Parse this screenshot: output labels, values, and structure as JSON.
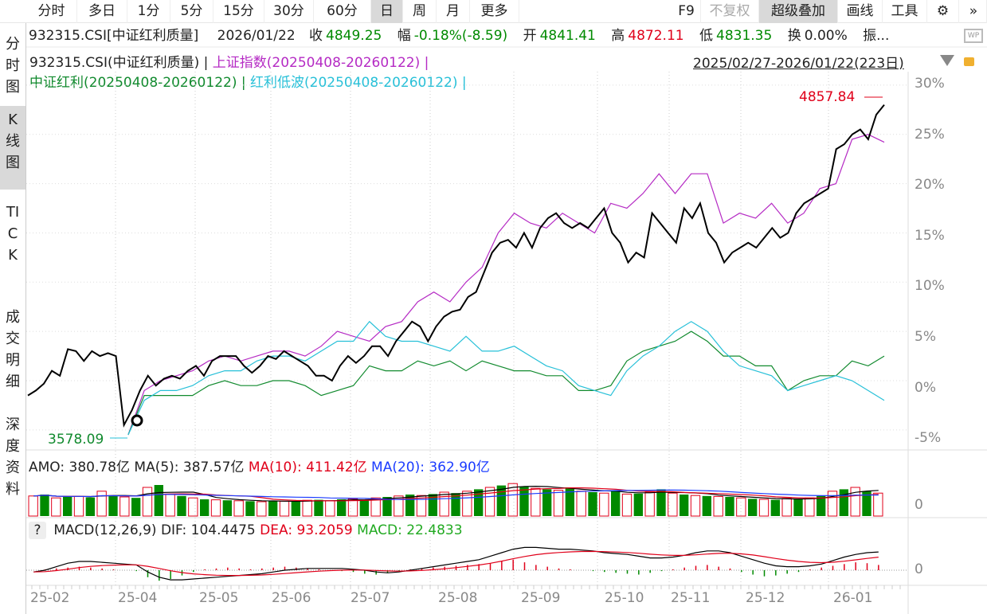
{
  "toolbar": {
    "tabs": [
      "分时",
      "多日",
      "1分",
      "5分",
      "15分",
      "30分",
      "60分",
      "日",
      "周",
      "月",
      "更多"
    ],
    "selected": "日",
    "right": [
      "F9",
      "不复权",
      "超级叠加",
      "画线",
      "工具"
    ],
    "settings_icon": "gear-icon",
    "more_icon": "double-chevron-right-icon"
  },
  "sidebar": {
    "items": [
      "分时图",
      "K线图",
      "TICK",
      "成交明细",
      "深度资料"
    ],
    "selected": "K线图"
  },
  "info": {
    "code": "932315.CSI[中证红利质量]",
    "date": "2026/01/22",
    "close_label": "收",
    "close": "4849.25",
    "change_label": "幅",
    "change": "-0.18%(-8.59)",
    "open_label": "开",
    "open": "4841.41",
    "high_label": "高",
    "high": "4872.11",
    "low_label": "低",
    "low": "4831.35",
    "turnover_label": "换",
    "turnover": "0.00%",
    "amp_label": "振..."
  },
  "legend": {
    "main": "932315.CSI(中证红利质量) |",
    "s1": "上证指数(20250408-20260122) |",
    "s2": "中证红利(20250408-20260122) |",
    "s3": "红利低波(20250408-20260122) |"
  },
  "range": "2025/02/27-2026/01/22(223日)",
  "colors": {
    "main": "#000000",
    "s1": "#b52bc4",
    "s2": "#118a2e",
    "s3": "#27c0d8",
    "up": "#e0001a",
    "down": "#008a00",
    "ma20": "#1b3cff"
  },
  "annotations": {
    "high": "4857.84",
    "low": "3578.09"
  },
  "y_axis": [
    "30%",
    "25%",
    "20%",
    "15%",
    "10%",
    "5%",
    "0%",
    "-5%"
  ],
  "x_axis": [
    "25-02",
    "25-04",
    "25-05",
    "25-06",
    "25-07",
    "25-08",
    "25-09",
    "25-10",
    "25-11",
    "25-12",
    "26-01"
  ],
  "volume": {
    "amo": "AMO: 380.78亿",
    "ma5": "MA(5): 387.57亿",
    "ma10": "MA(10): 411.42亿",
    "ma20": "MA(20): 362.90亿",
    "axis": "0"
  },
  "macd": {
    "help": "?",
    "title": "MACD(12,26,9)",
    "dif": "DIF: 104.4475",
    "dea": "DEA: 93.2059",
    "macd": "MACD: 22.4833",
    "axis": "0"
  },
  "chart_data": {
    "type": "line",
    "ylabel": "percent change",
    "ylim": [
      -7,
      31
    ],
    "days": 223,
    "series": [
      {
        "name": "932315.CSI(中证红利质量)",
        "start_day": 0,
        "end_day": 222,
        "values": [
          -1.5,
          -1,
          -0.3,
          1,
          0.5,
          3.2,
          3,
          2,
          3,
          2.5,
          2.8,
          2.5,
          -4.5,
          -3,
          -1,
          0.5,
          -0.5,
          0.2,
          0.5,
          0.2,
          1,
          1.5,
          0.5,
          2,
          2.5,
          2.5,
          2.5,
          1.5,
          0.8,
          1.5,
          2.5,
          2.2,
          3,
          2.5,
          2,
          1.5,
          0.5,
          0.5,
          0,
          1.5,
          2.5,
          1.8,
          2.5,
          3.5,
          3.5,
          2.5,
          4,
          5,
          6,
          5.5,
          4,
          5.5,
          6.5,
          7,
          7.2,
          8.5,
          9,
          11,
          13,
          14,
          14.3,
          13.5,
          15,
          13.5,
          15.5,
          16.5,
          17,
          16,
          15.5,
          16,
          15.5,
          16.5,
          17.5,
          15,
          14,
          12,
          13,
          12.5,
          17,
          16,
          15,
          14,
          17.5,
          16.5,
          18,
          15,
          14,
          12,
          13,
          13.5,
          14,
          13.5,
          14.5,
          15.5,
          14.5,
          15,
          17,
          18,
          18.5,
          19,
          19.5,
          23.5,
          24,
          25,
          25.5,
          24.5,
          27,
          28
        ]
      },
      {
        "name": "上证指数",
        "start_day": 26,
        "end_day": 222,
        "values": [
          -5.5,
          -1,
          0,
          0.5,
          1,
          2,
          2.5,
          2,
          2.5,
          3,
          3,
          2.5,
          3.5,
          5,
          4.5,
          4,
          5.5,
          6,
          8,
          9,
          8,
          10,
          11.5,
          15,
          17,
          16,
          15.5,
          17,
          16,
          15,
          18,
          17.5,
          19,
          21,
          19,
          21,
          21,
          16,
          17,
          16.5,
          18,
          16,
          17,
          19.5,
          20,
          24.5,
          25,
          24.2
        ]
      },
      {
        "name": "中证红利",
        "start_day": 26,
        "end_day": 222,
        "values": [
          -5.5,
          -1.5,
          -1.5,
          -1.5,
          -1.5,
          -0.5,
          0,
          -0.5,
          -0.5,
          0,
          0,
          -0.5,
          -1.5,
          -1,
          -0.5,
          1.5,
          1,
          1,
          2,
          1.5,
          2,
          1,
          2,
          1.5,
          1,
          1,
          0.5,
          0.5,
          -1,
          -1,
          -0.5,
          2,
          3,
          3.5,
          4,
          5,
          4,
          2.5,
          2.5,
          1.5,
          1.5,
          -1,
          0,
          0.5,
          0.5,
          2,
          1.5,
          2.5
        ]
      },
      {
        "name": "红利低波",
        "start_day": 26,
        "end_day": 222,
        "values": [
          -5.5,
          -2,
          -1,
          -1,
          -0.5,
          0.5,
          1,
          1,
          2,
          2.5,
          2.5,
          2,
          3,
          4,
          4,
          6,
          4.5,
          4,
          4,
          3.5,
          3,
          4.5,
          3,
          3,
          3.5,
          2.5,
          1.5,
          1,
          -0.5,
          -1,
          -1.5,
          1,
          2.5,
          3.5,
          5,
          6,
          5,
          3,
          1.5,
          1,
          0.5,
          -1,
          -0.5,
          0,
          0.5,
          0,
          -1,
          -2
        ]
      }
    ],
    "volume_yi": [
      420,
      -450,
      380,
      -400,
      410,
      -390,
      520,
      -430,
      400,
      -380,
      600,
      -650,
      450,
      -420,
      380,
      -350,
      340,
      -330,
      320,
      -310,
      300,
      -320,
      310,
      -300,
      330,
      -340,
      320,
      -350,
      360,
      -340,
      380,
      -400,
      420,
      -450,
      430,
      -460,
      500,
      -480,
      520,
      -560,
      600,
      -640,
      680,
      -620,
      580,
      -560,
      540,
      -600,
      520,
      -500,
      480,
      -520,
      460,
      -470,
      500,
      -560,
      480,
      -450,
      430,
      -420,
      410,
      -400,
      380,
      -360,
      350,
      -340,
      370,
      -360,
      380,
      -420,
      520,
      -560,
      600,
      -520,
      480
    ],
    "macd_hist": [
      0,
      5,
      10,
      15,
      20,
      15,
      10,
      5,
      0,
      -5,
      -40,
      -60,
      -50,
      -30,
      -10,
      5,
      10,
      15,
      10,
      5,
      10,
      15,
      20,
      15,
      10,
      5,
      0,
      -5,
      -10,
      -20,
      -25,
      -15,
      -5,
      5,
      10,
      15,
      20,
      25,
      30,
      35,
      40,
      50,
      60,
      45,
      30,
      20,
      10,
      5,
      0,
      -5,
      -10,
      -15,
      -20,
      -25,
      -15,
      -5,
      5,
      15,
      25,
      30,
      20,
      10,
      -10,
      -25,
      -35,
      -30,
      -20,
      -10,
      5,
      15,
      25,
      35,
      45,
      40,
      30
    ],
    "dif": [
      -10,
      0,
      20,
      40,
      50,
      50,
      45,
      40,
      35,
      30,
      -10,
      -40,
      -55,
      -55,
      -50,
      -45,
      -40,
      -35,
      -30,
      -25,
      -20,
      -10,
      0,
      5,
      10,
      10,
      10,
      10,
      5,
      0,
      -10,
      -15,
      -10,
      0,
      10,
      20,
      30,
      40,
      50,
      60,
      80,
      100,
      120,
      130,
      130,
      125,
      120,
      120,
      115,
      110,
      100,
      95,
      90,
      80,
      70,
      70,
      75,
      85,
      100,
      110,
      110,
      100,
      80,
      60,
      40,
      25,
      20,
      20,
      25,
      35,
      55,
      75,
      90,
      100,
      104
    ]
  }
}
